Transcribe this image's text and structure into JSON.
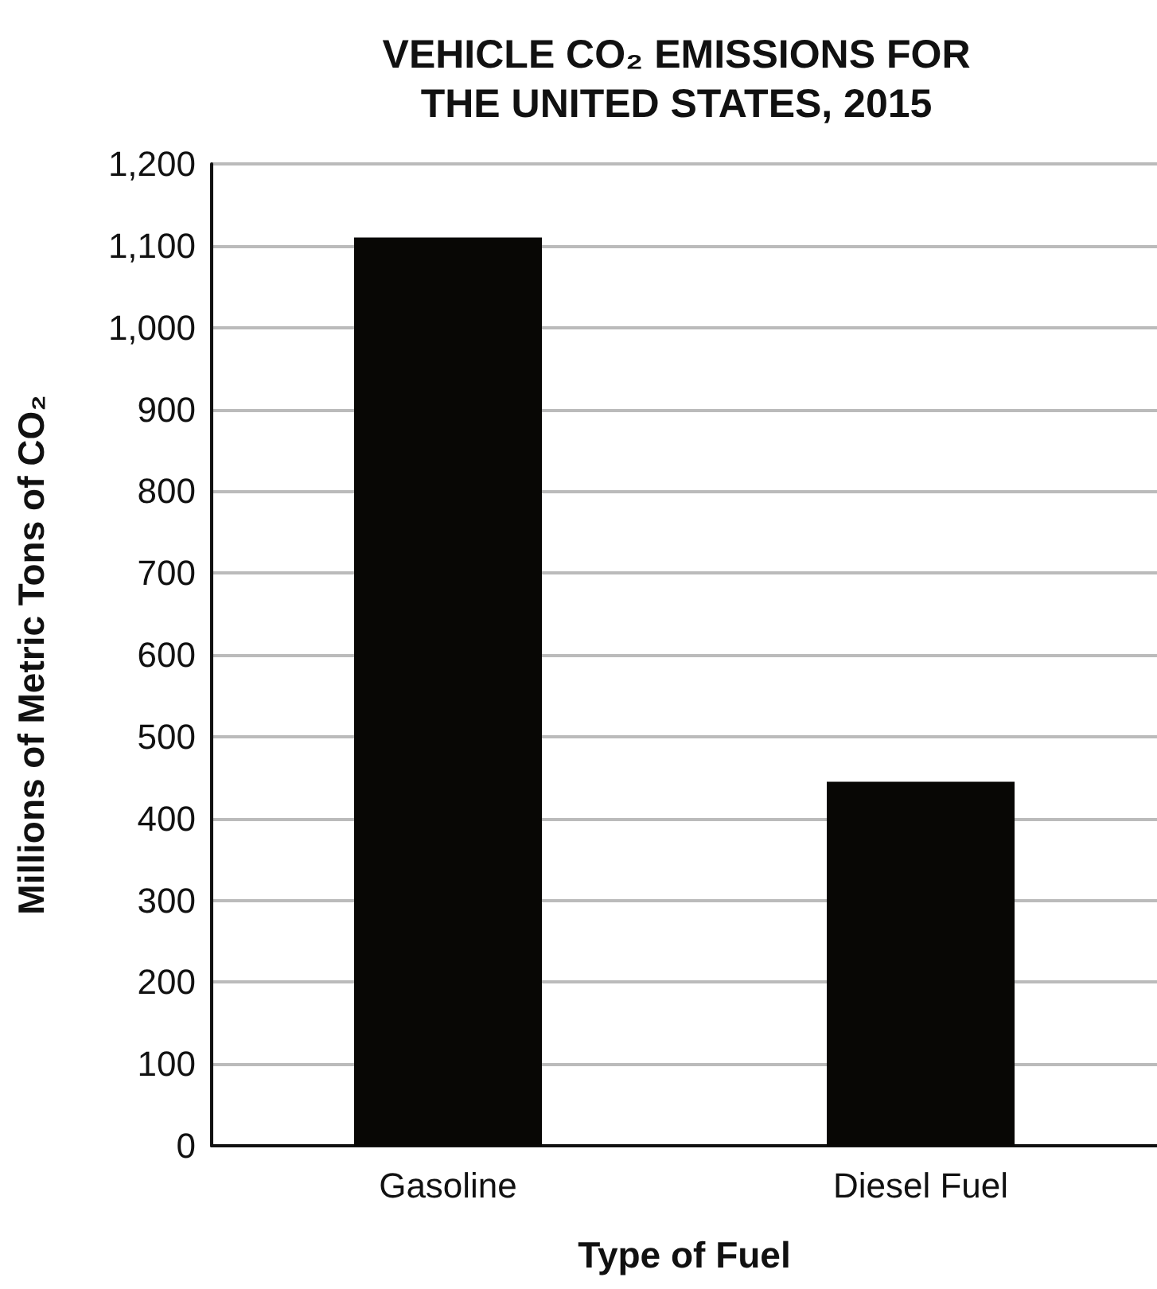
{
  "chart_data": {
    "type": "bar",
    "title": "VEHICLE CO₂ EMISSIONS FOR\nTHE UNITED STATES, 2015",
    "xlabel": "Type of Fuel",
    "ylabel": "Millions of Metric Tons of CO₂",
    "categories": [
      "Gasoline",
      "Diesel Fuel"
    ],
    "values": [
      1110,
      445
    ],
    "color": "#080705",
    "ylim": [
      0,
      1200
    ],
    "yticks": [
      {
        "value": 0,
        "label": "0"
      },
      {
        "value": 100,
        "label": "100"
      },
      {
        "value": 200,
        "label": "200"
      },
      {
        "value": 300,
        "label": "300"
      },
      {
        "value": 400,
        "label": "400"
      },
      {
        "value": 500,
        "label": "500"
      },
      {
        "value": 600,
        "label": "600"
      },
      {
        "value": 700,
        "label": "700"
      },
      {
        "value": 800,
        "label": "800"
      },
      {
        "value": 900,
        "label": "900"
      },
      {
        "value": 1000,
        "label": "1,000"
      },
      {
        "value": 1100,
        "label": "1,100"
      },
      {
        "value": 1200,
        "label": "1,200"
      }
    ],
    "grid": "y"
  }
}
